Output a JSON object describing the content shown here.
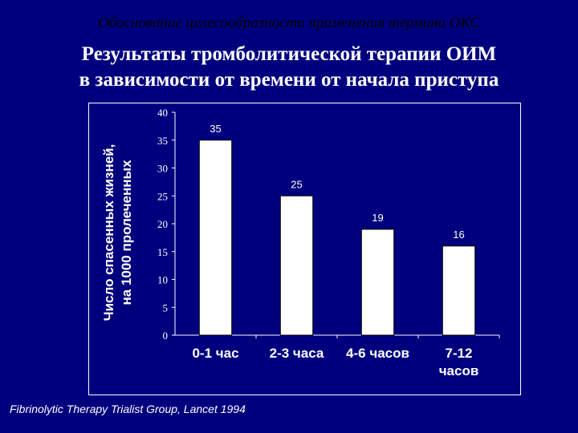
{
  "slide": {
    "supertitle": "Обоснование целесообразности применения термина ОКС",
    "title_line1": "Результаты тромболитической терапии ОИМ",
    "title_line2": "в зависимости от времени от начала приступа",
    "source": "Fibrinolytic Therapy Trialist Group, Lancet 1994"
  },
  "colors": {
    "background": "#00007e",
    "chart_background": "#00007e",
    "bars": "#ffffff",
    "text": "#ffffff",
    "supertitle": "#000000"
  },
  "chart_data": {
    "type": "bar",
    "categories": [
      [
        "0-1 час"
      ],
      [
        "2-3 часа"
      ],
      [
        "4-6 часов"
      ],
      [
        "7-12",
        "часов"
      ]
    ],
    "values": [
      35,
      25,
      19,
      16
    ],
    "data_labels": [
      "35",
      "25",
      "19",
      "16"
    ],
    "ylabel_line1": "Число спасенных жизней,",
    "ylabel_line2": "на 1000 пролеченных",
    "ylim": [
      0,
      40
    ],
    "yticks": [
      0,
      5,
      10,
      15,
      20,
      25,
      30,
      35,
      40
    ],
    "grid": false,
    "legend": "none"
  }
}
